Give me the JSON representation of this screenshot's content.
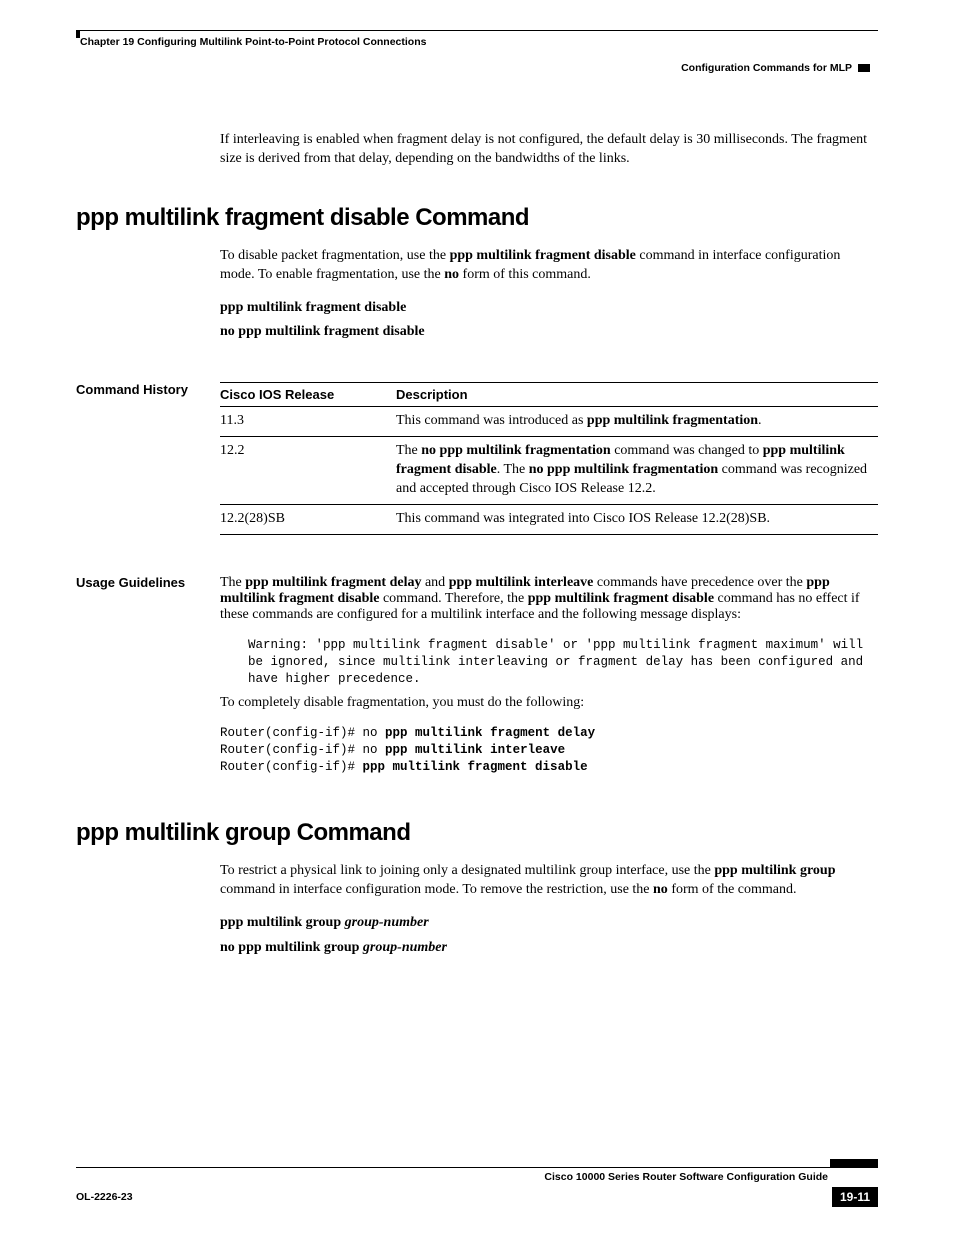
{
  "header": {
    "chapter": "Chapter 19    Configuring Multilink Point-to-Point Protocol Connections",
    "section": "Configuration Commands for MLP"
  },
  "intro_para": "If interleaving is enabled when fragment delay is not configured, the default delay is 30 milliseconds. The fragment size is derived from that delay, depending on the bandwidths of the links.",
  "sec1": {
    "title": "ppp multilink fragment disable Command",
    "desc_pre": "To disable packet fragmentation, use the ",
    "desc_cmd": "ppp multilink fragment disable",
    "desc_mid": " command in interface configuration mode. To enable fragmentation, use the ",
    "desc_no": "no",
    "desc_end": " form of this command.",
    "syntax1": "ppp multilink fragment disable",
    "syntax2": "no ppp multilink fragment disable"
  },
  "labels": {
    "cmdhist": "Command History",
    "usage": "Usage Guidelines"
  },
  "table": {
    "h1": "Cisco IOS Release",
    "h2": "Description",
    "r1c1": "11.3",
    "r1c2a": "This command was introduced as ",
    "r1c2b": "ppp multilink fragmentation",
    "r2c1": "12.2",
    "r2c2a": "The ",
    "r2c2b": "no ppp multilink fragmentation",
    "r2c2c": " command was changed to ",
    "r2c2d": "ppp multilink fragment disable",
    "r2c2e": ". The ",
    "r2c2f": "no ppp multilink fragmentation",
    "r2c2g": " command was recognized and accepted through Cisco IOS Release 12.2.",
    "r3c1": "12.2(28)SB",
    "r3c2": "This command was integrated into Cisco IOS Release 12.2(28)SB."
  },
  "usage": {
    "p1a": "The ",
    "p1b": "ppp multilink fragment delay",
    "p1c": " and ",
    "p1d": "ppp multilink interleave",
    "p1e": " commands have precedence over the ",
    "p1f": "ppp multilink fragment disable",
    "p1g": " command. Therefore, the ",
    "p1h": "ppp multilink fragment disable",
    "p1i": " command has no effect if these commands are configured for a multilink interface and the following message displays:",
    "warn": "Warning: 'ppp multilink fragment disable' or 'ppp multilink fragment maximum' will be ignored, since multilink interleaving or fragment delay has been configured and have higher precedence.",
    "p2": "To completely disable fragmentation, you must do the following:",
    "cli_prompt": "Router(config-if)# ",
    "cli_no": "no ",
    "cli1": "ppp multilink fragment delay",
    "cli2": "ppp multilink interleave",
    "cli3": "ppp multilink fragment disable"
  },
  "sec2": {
    "title": "ppp multilink group Command",
    "desc_a": "To restrict a physical link to joining only a designated multilink group interface, use the ",
    "desc_b": "ppp multilink group",
    "desc_c": " command in interface configuration mode. To remove the restriction, use the ",
    "desc_d": "no",
    "desc_e": " form of the command.",
    "syntax1a": "ppp multilink group ",
    "syntax1b": "group-number",
    "syntax2a": "no ppp multilink group ",
    "syntax2b": "group-number"
  },
  "footer": {
    "guide": "Cisco 10000 Series Router Software Configuration Guide",
    "doc": "OL-2226-23",
    "page": "19-11"
  }
}
